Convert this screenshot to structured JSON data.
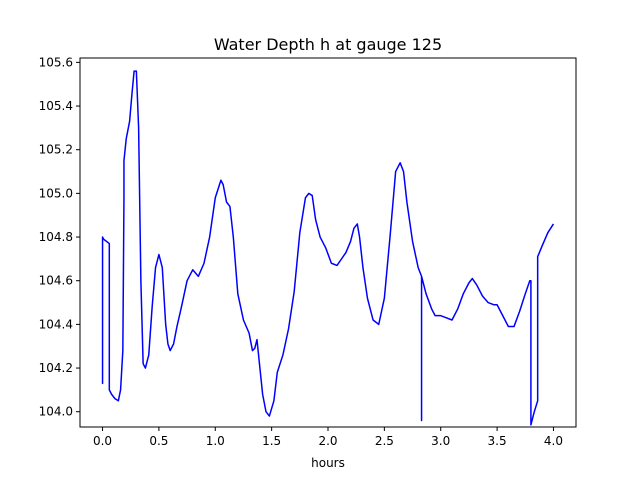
{
  "chart_data": {
    "type": "line",
    "title": "Water Depth h at gauge 125",
    "xlabel": "hours",
    "ylabel": "",
    "xlim": [
      -0.2,
      4.2
    ],
    "ylim": [
      103.93,
      105.62
    ],
    "xticks": [
      0.0,
      0.5,
      1.0,
      1.5,
      2.0,
      2.5,
      3.0,
      3.5,
      4.0
    ],
    "xtick_labels": [
      "0.0",
      "0.5",
      "1.0",
      "1.5",
      "2.0",
      "2.5",
      "3.0",
      "3.5",
      "4.0"
    ],
    "yticks": [
      104.0,
      104.2,
      104.4,
      104.6,
      104.8,
      105.0,
      105.2,
      105.4,
      105.6
    ],
    "ytick_labels": [
      "104.0",
      "104.2",
      "104.4",
      "104.6",
      "104.8",
      "105.0",
      "105.2",
      "105.4",
      "105.6"
    ],
    "grid": false,
    "line_color": "#0000ff",
    "series": [
      {
        "x": [
          0.0,
          0.0,
          0.0,
          0.01,
          0.06,
          0.06,
          0.08,
          0.11,
          0.14,
          0.16,
          0.18,
          0.19,
          0.19,
          0.21,
          0.24,
          0.26,
          0.28,
          0.3,
          0.32,
          0.34,
          0.36,
          0.38,
          0.41,
          0.44,
          0.47,
          0.5,
          0.53,
          0.56,
          0.58,
          0.6,
          0.63,
          0.66,
          0.7,
          0.75,
          0.8,
          0.85,
          0.9,
          0.95,
          1.0,
          1.05,
          1.07,
          1.1,
          1.13,
          1.16,
          1.2,
          1.25,
          1.3,
          1.33,
          1.35,
          1.37,
          1.4,
          1.42,
          1.45,
          1.48,
          1.52,
          1.55,
          1.6,
          1.65,
          1.7,
          1.75,
          1.8,
          1.83,
          1.86,
          1.89,
          1.93,
          1.98,
          2.03,
          2.08,
          2.12,
          2.16,
          2.2,
          2.23,
          2.26,
          2.28,
          2.31,
          2.35,
          2.4,
          2.45,
          2.5,
          2.55,
          2.6,
          2.64,
          2.67,
          2.7,
          2.75,
          2.8,
          2.83,
          2.83,
          2.83,
          2.87,
          2.92,
          2.95,
          3.0,
          3.05,
          3.1,
          3.15,
          3.2,
          3.25,
          3.28,
          3.32,
          3.37,
          3.42,
          3.47,
          3.5,
          3.55,
          3.6,
          3.65,
          3.7,
          3.75,
          3.79,
          3.8,
          3.8,
          3.83,
          3.86,
          3.86,
          3.9,
          3.95,
          4.0
        ],
        "y": [
          104.2,
          104.13,
          104.8,
          104.79,
          104.77,
          104.1,
          104.08,
          104.06,
          104.05,
          104.1,
          104.28,
          104.98,
          105.15,
          105.25,
          105.33,
          105.45,
          105.56,
          105.56,
          105.3,
          104.6,
          104.22,
          104.2,
          104.26,
          104.48,
          104.66,
          104.72,
          104.66,
          104.4,
          104.31,
          104.28,
          104.31,
          104.39,
          104.48,
          104.6,
          104.65,
          104.62,
          104.68,
          104.8,
          104.98,
          105.06,
          105.04,
          104.96,
          104.94,
          104.8,
          104.54,
          104.42,
          104.36,
          104.28,
          104.29,
          104.33,
          104.18,
          104.08,
          104.0,
          103.98,
          104.05,
          104.18,
          104.26,
          104.38,
          104.55,
          104.82,
          104.98,
          105.0,
          104.99,
          104.88,
          104.8,
          104.75,
          104.68,
          104.67,
          104.7,
          104.73,
          104.78,
          104.84,
          104.86,
          104.8,
          104.66,
          104.52,
          104.42,
          104.4,
          104.52,
          104.8,
          105.1,
          105.14,
          105.1,
          104.96,
          104.78,
          104.66,
          104.62,
          103.96,
          104.62,
          104.54,
          104.47,
          104.44,
          104.44,
          104.43,
          104.42,
          104.47,
          104.54,
          104.59,
          104.61,
          104.58,
          104.53,
          104.5,
          104.49,
          104.49,
          104.44,
          104.39,
          104.39,
          104.46,
          104.54,
          104.6,
          104.6,
          103.94,
          104.0,
          104.05,
          104.71,
          104.76,
          104.82,
          104.86
        ]
      }
    ]
  }
}
